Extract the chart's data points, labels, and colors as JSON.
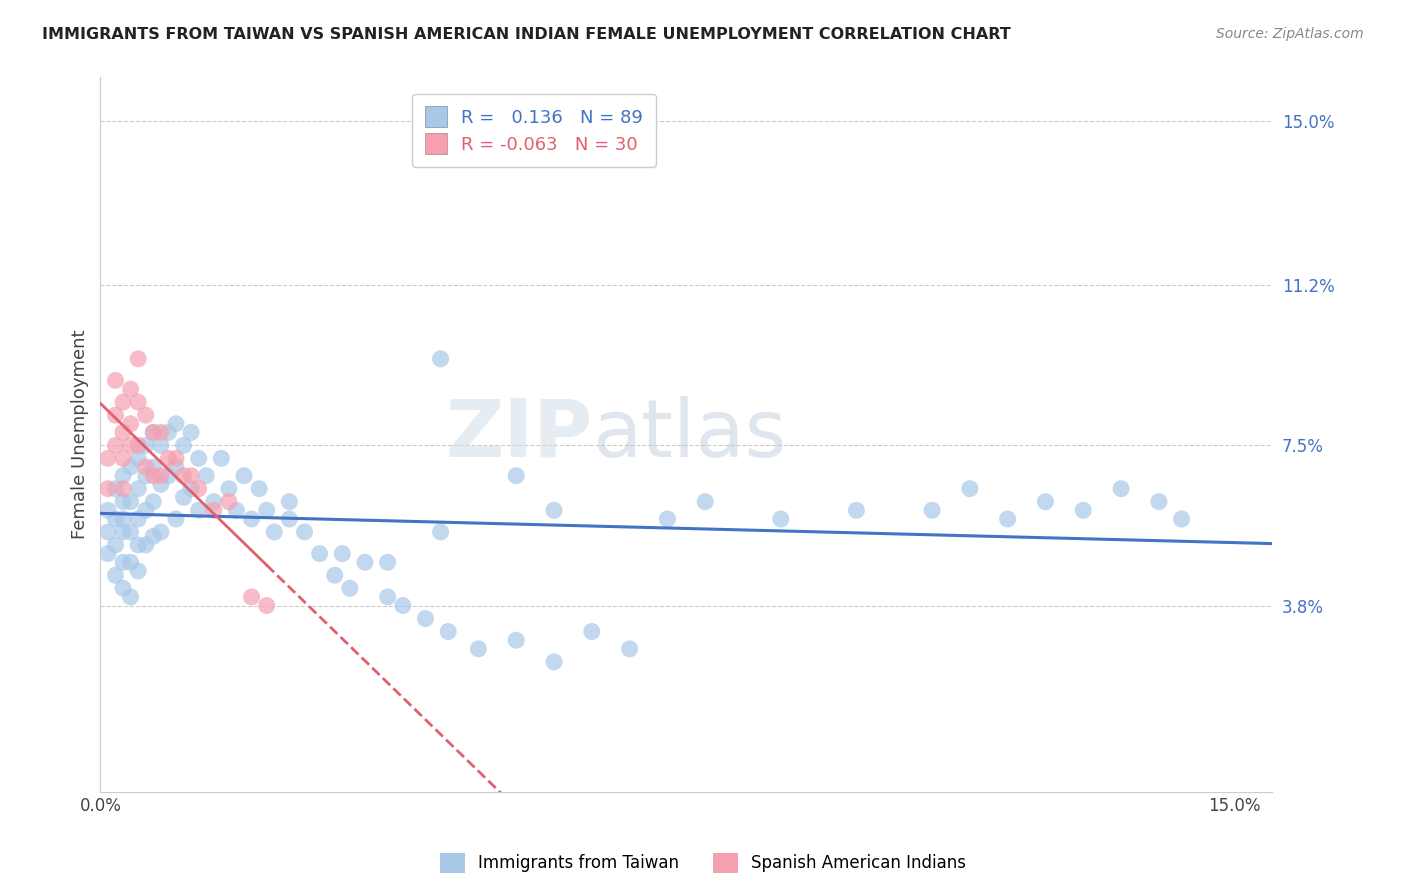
{
  "title": "IMMIGRANTS FROM TAIWAN VS SPANISH AMERICAN INDIAN FEMALE UNEMPLOYMENT CORRELATION CHART",
  "source": "Source: ZipAtlas.com",
  "ylabel_label": "Female Unemployment",
  "xlim": [
    0.0,
    0.155
  ],
  "ylim": [
    -0.005,
    0.16
  ],
  "yticks": [
    0.038,
    0.075,
    0.112,
    0.15
  ],
  "ytick_labels": [
    "3.8%",
    "7.5%",
    "11.2%",
    "15.0%"
  ],
  "xticks": [
    0.0,
    0.15
  ],
  "xtick_labels": [
    "0.0%",
    "15.0%"
  ],
  "legend_r1_val": "0.136",
  "legend_r2_val": "-0.063",
  "legend_n1": "89",
  "legend_n2": "30",
  "color_blue": "#a8c8e8",
  "color_pink": "#f4a0b0",
  "color_line_blue": "#4472c4",
  "color_line_pink": "#e06070",
  "color_grid": "#cccccc",
  "color_title": "#222222",
  "color_axis_right": "#4472c4",
  "watermark": "ZIPatlas",
  "taiwan_x": [
    0.001,
    0.001,
    0.001,
    0.002,
    0.002,
    0.002,
    0.002,
    0.003,
    0.003,
    0.003,
    0.003,
    0.003,
    0.003,
    0.004,
    0.004,
    0.004,
    0.004,
    0.004,
    0.005,
    0.005,
    0.005,
    0.005,
    0.005,
    0.006,
    0.006,
    0.006,
    0.006,
    0.007,
    0.007,
    0.007,
    0.007,
    0.008,
    0.008,
    0.008,
    0.009,
    0.009,
    0.01,
    0.01,
    0.01,
    0.011,
    0.011,
    0.012,
    0.012,
    0.013,
    0.013,
    0.014,
    0.015,
    0.016,
    0.017,
    0.018,
    0.019,
    0.02,
    0.021,
    0.022,
    0.023,
    0.025,
    0.027,
    0.029,
    0.031,
    0.033,
    0.035,
    0.038,
    0.04,
    0.043,
    0.046,
    0.05,
    0.055,
    0.06,
    0.065,
    0.07,
    0.075,
    0.08,
    0.09,
    0.1,
    0.11,
    0.115,
    0.12,
    0.125,
    0.13,
    0.135,
    0.14,
    0.143,
    0.045,
    0.055,
    0.038,
    0.025,
    0.06,
    0.045,
    0.032
  ],
  "taiwan_y": [
    0.06,
    0.055,
    0.05,
    0.065,
    0.058,
    0.052,
    0.045,
    0.068,
    0.062,
    0.055,
    0.048,
    0.042,
    0.058,
    0.07,
    0.062,
    0.055,
    0.048,
    0.04,
    0.072,
    0.065,
    0.058,
    0.052,
    0.046,
    0.075,
    0.068,
    0.06,
    0.052,
    0.078,
    0.07,
    0.062,
    0.054,
    0.075,
    0.066,
    0.055,
    0.078,
    0.068,
    0.08,
    0.07,
    0.058,
    0.075,
    0.063,
    0.078,
    0.065,
    0.072,
    0.06,
    0.068,
    0.062,
    0.072,
    0.065,
    0.06,
    0.068,
    0.058,
    0.065,
    0.06,
    0.055,
    0.058,
    0.055,
    0.05,
    0.045,
    0.042,
    0.048,
    0.04,
    0.038,
    0.035,
    0.032,
    0.028,
    0.03,
    0.025,
    0.032,
    0.028,
    0.058,
    0.062,
    0.058,
    0.06,
    0.06,
    0.065,
    0.058,
    0.062,
    0.06,
    0.065,
    0.062,
    0.058,
    0.095,
    0.068,
    0.048,
    0.062,
    0.06,
    0.055,
    0.05
  ],
  "spanish_x": [
    0.001,
    0.001,
    0.002,
    0.002,
    0.002,
    0.003,
    0.003,
    0.003,
    0.003,
    0.004,
    0.004,
    0.004,
    0.005,
    0.005,
    0.005,
    0.006,
    0.006,
    0.007,
    0.007,
    0.008,
    0.008,
    0.009,
    0.01,
    0.011,
    0.012,
    0.013,
    0.015,
    0.017,
    0.02,
    0.022
  ],
  "spanish_y": [
    0.065,
    0.072,
    0.082,
    0.09,
    0.075,
    0.078,
    0.085,
    0.072,
    0.065,
    0.088,
    0.08,
    0.075,
    0.095,
    0.085,
    0.075,
    0.082,
    0.07,
    0.078,
    0.068,
    0.078,
    0.068,
    0.072,
    0.072,
    0.068,
    0.068,
    0.065,
    0.06,
    0.062,
    0.04,
    0.038
  ]
}
